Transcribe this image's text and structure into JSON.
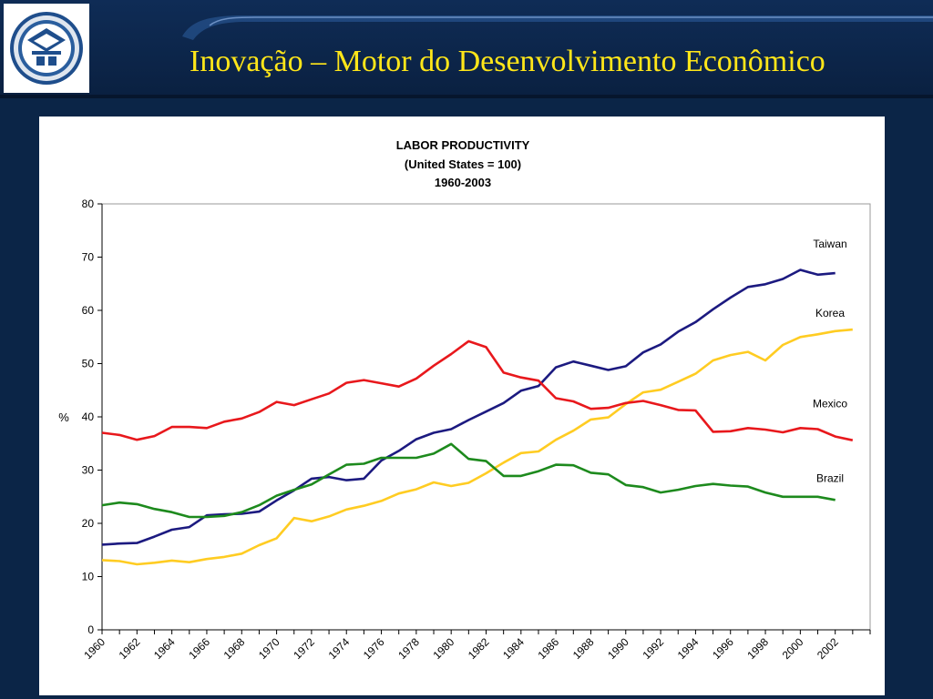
{
  "slide": {
    "title": "Inovação – Motor do Desenvolvimento Econômico",
    "logo": "university-seal-icon"
  },
  "colors": {
    "background": "#0b2547",
    "title_text": "#ffe619",
    "taiwan": "#1c1a80",
    "korea": "#ffcc22",
    "mexico": "#e8181c",
    "brazil": "#1d8a1d"
  },
  "chart_data": {
    "type": "line",
    "title_lines": [
      "LABOR PRODUCTIVITY",
      "(United States = 100)",
      "1960-2003"
    ],
    "xlabel": "",
    "ylabel": "%",
    "ylim": [
      0,
      80
    ],
    "yticks": [
      0,
      10,
      20,
      30,
      40,
      50,
      60,
      70,
      80
    ],
    "xlim": [
      1960,
      2004
    ],
    "xticks": [
      1960,
      1962,
      1964,
      1966,
      1968,
      1970,
      1972,
      1974,
      1976,
      1978,
      1980,
      1982,
      1984,
      1986,
      1988,
      1990,
      1992,
      1994,
      1996,
      1998,
      2000,
      2002
    ],
    "grid": false,
    "legend": "inline labels at right",
    "series": [
      {
        "name": "Taiwan",
        "color": "#1c1a80",
        "x": [
          1960,
          1961,
          1962,
          1963,
          1964,
          1965,
          1966,
          1967,
          1968,
          1969,
          1970,
          1971,
          1972,
          1973,
          1974,
          1975,
          1976,
          1977,
          1978,
          1979,
          1980,
          1981,
          1982,
          1983,
          1984,
          1985,
          1986,
          1987,
          1988,
          1989,
          1990,
          1991,
          1992,
          1993,
          1994,
          1995,
          1996,
          1997,
          1998,
          1999,
          2000,
          2001,
          2002
        ],
        "y": [
          16,
          16.2,
          16.3,
          17.5,
          18.8,
          19.3,
          21.5,
          21.7,
          21.8,
          22.2,
          24.3,
          26.2,
          28.4,
          28.7,
          28.1,
          28.4,
          31.8,
          33.6,
          35.8,
          37,
          37.7,
          39.4,
          41,
          42.6,
          44.9,
          45.8,
          49.3,
          50.4,
          49.6,
          48.8,
          49.5,
          52.1,
          53.6,
          56,
          57.8,
          60.2,
          62.4,
          64.4,
          64.9,
          65.9,
          67.6,
          66.7,
          67
        ]
      },
      {
        "name": "Korea",
        "color": "#ffcc22",
        "x": [
          1960,
          1961,
          1962,
          1963,
          1964,
          1965,
          1966,
          1967,
          1968,
          1969,
          1970,
          1971,
          1972,
          1973,
          1974,
          1975,
          1976,
          1977,
          1978,
          1979,
          1980,
          1981,
          1982,
          1983,
          1984,
          1985,
          1986,
          1987,
          1988,
          1989,
          1990,
          1991,
          1992,
          1993,
          1994,
          1995,
          1996,
          1997,
          1998,
          1999,
          2000,
          2001,
          2002,
          2003
        ],
        "y": [
          13.1,
          12.9,
          12.3,
          12.6,
          13,
          12.7,
          13.3,
          13.7,
          14.3,
          15.9,
          17.2,
          21,
          20.4,
          21.3,
          22.6,
          23.3,
          24.2,
          25.6,
          26.4,
          27.7,
          27,
          27.6,
          29.4,
          31.4,
          33.2,
          33.5,
          35.7,
          37.4,
          39.5,
          39.9,
          42.4,
          44.6,
          45.1,
          46.6,
          48.1,
          50.6,
          51.6,
          52.2,
          50.6,
          53.5,
          55,
          55.5,
          56.1,
          56.4
        ]
      },
      {
        "name": "Mexico",
        "color": "#e8181c",
        "x": [
          1960,
          1961,
          1962,
          1963,
          1964,
          1965,
          1966,
          1967,
          1968,
          1969,
          1970,
          1971,
          1972,
          1973,
          1974,
          1975,
          1976,
          1977,
          1978,
          1979,
          1980,
          1981,
          1982,
          1983,
          1984,
          1985,
          1986,
          1987,
          1988,
          1989,
          1990,
          1991,
          1992,
          1993,
          1994,
          1995,
          1996,
          1997,
          1998,
          1999,
          2000,
          2001,
          2002,
          2003
        ],
        "y": [
          37,
          36.6,
          35.7,
          36.4,
          38.1,
          38.1,
          37.9,
          39.1,
          39.7,
          40.9,
          42.8,
          42.2,
          43.3,
          44.4,
          46.4,
          46.9,
          46.3,
          45.7,
          47.2,
          49.6,
          51.8,
          54.2,
          53.1,
          48.3,
          47.4,
          46.8,
          43.5,
          42.9,
          41.5,
          41.7,
          42.6,
          43,
          42.2,
          41.3,
          41.2,
          37.2,
          37.3,
          37.9,
          37.6,
          37.1,
          37.9,
          37.7,
          36.3,
          35.6
        ]
      },
      {
        "name": "Brazil",
        "color": "#1d8a1d",
        "x": [
          1960,
          1961,
          1962,
          1963,
          1964,
          1965,
          1966,
          1967,
          1968,
          1969,
          1970,
          1971,
          1972,
          1973,
          1974,
          1975,
          1976,
          1977,
          1978,
          1979,
          1980,
          1981,
          1982,
          1983,
          1984,
          1985,
          1986,
          1987,
          1988,
          1989,
          1990,
          1991,
          1992,
          1993,
          1994,
          1995,
          1996,
          1997,
          1998,
          1999,
          2000,
          2001,
          2002
        ],
        "y": [
          23.4,
          23.9,
          23.6,
          22.7,
          22.1,
          21.2,
          21.2,
          21.4,
          22.1,
          23.4,
          25.2,
          26.3,
          27.3,
          29.2,
          31,
          31.2,
          32.3,
          32.3,
          32.3,
          33.1,
          34.9,
          32.1,
          31.7,
          28.9,
          28.9,
          29.8,
          31,
          30.9,
          29.5,
          29.2,
          27.2,
          26.8,
          25.8,
          26.3,
          27,
          27.4,
          27.1,
          26.9,
          25.8,
          25,
          25,
          25,
          24.4
        ]
      }
    ]
  }
}
